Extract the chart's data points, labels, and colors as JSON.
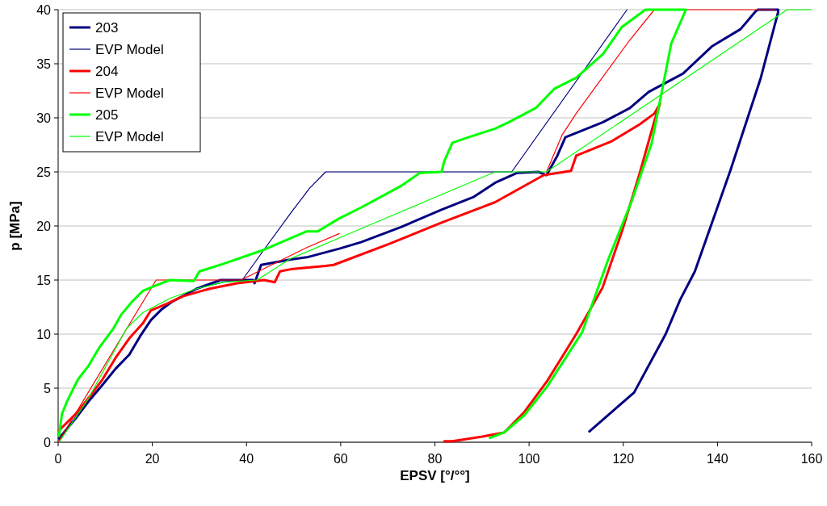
{
  "chart_data": {
    "type": "line",
    "xlabel": "EPSV [°/°°]",
    "ylabel": "p [MPa]",
    "xlim": [
      0,
      160
    ],
    "ylim": [
      0,
      40
    ],
    "xticks": [
      0,
      20,
      40,
      60,
      80,
      100,
      120,
      140,
      160
    ],
    "yticks": [
      0,
      5,
      10,
      15,
      20,
      25,
      30,
      35,
      40
    ],
    "grid": "y",
    "legend": "top left",
    "marker": "none",
    "line_style": "solid",
    "series": [
      {
        "name": "203",
        "color": "#000080",
        "x": [
          0.2,
          3.7,
          6.5,
          9.4,
          12.2,
          15.1,
          17.4,
          19.7,
          22,
          24.2,
          29.4,
          34.5,
          41.4,
          41.7,
          43.1,
          49.4,
          52.8,
          59.7,
          64.3,
          72.8,
          81.4,
          88.3,
          92.8,
          97.4,
          102,
          103.7,
          106,
          107.7,
          115.7,
          121.4,
          125.4,
          132.7,
          138.8,
          144.9,
          148,
          148.6,
          152.9,
          152.9,
          149.2,
          142.8,
          135.2,
          132.1,
          129,
          122.3,
          112.8
        ],
        "values": [
          0.35,
          2.2,
          3.8,
          5.3,
          6.8,
          8.1,
          9.8,
          11.3,
          12.3,
          13,
          14.2,
          15,
          15,
          14.7,
          16.4,
          16.9,
          17.1,
          17.9,
          18.5,
          19.9,
          21.5,
          22.7,
          24,
          24.9,
          25,
          24.7,
          26.5,
          28.2,
          29.6,
          30.9,
          32.4,
          34.1,
          36.6,
          38.2,
          39.8,
          40,
          40,
          39.8,
          33.7,
          25.2,
          15.8,
          13.2,
          10,
          4.6,
          1
        ]
      },
      {
        "name": "EVP Model",
        "color": "#000080",
        "x": [
          0,
          6.5,
          14.5,
          18,
          23.7,
          29.4,
          35.1,
          39.1,
          43.7,
          49.4,
          53.4,
          56.8,
          96.3,
          120.8
        ],
        "values": [
          0,
          4.1,
          null,
          null,
          null,
          14.2,
          14.8,
          15,
          17.8,
          21.2,
          23.5,
          25,
          25,
          40
        ]
      },
      {
        "name": "204",
        "color": "#ff0000",
        "x": [
          0.2,
          3.7,
          6.5,
          9.4,
          12.2,
          15.1,
          18,
          19.7,
          23.1,
          26.5,
          32.2,
          38,
          43.7,
          46,
          47.1,
          49.4,
          56.8,
          58.5,
          70,
          81.4,
          92.8,
          103.1,
          108.9,
          110,
          117.4,
          123.5,
          126.6,
          127.8,
          126.6,
          123.5,
          119.8,
          115.6,
          110,
          103.9,
          99,
          94.7,
          89.8,
          83.7,
          82
        ],
        "values": [
          1.1,
          2.6,
          4.1,
          5.8,
          7.8,
          9.6,
          11,
          12.2,
          12.8,
          13.5,
          14.2,
          14.7,
          15,
          14.8,
          15.8,
          16,
          16.3,
          16.4,
          18.3,
          20.3,
          22.2,
          24.7,
          25.1,
          26.5,
          27.8,
          29.4,
          30.4,
          31.3,
          29.7,
          24.9,
          19.6,
          14.3,
          10,
          5.7,
          2.8,
          0.9,
          0.5,
          0.1,
          0.1
        ]
      },
      {
        "name": "EVP Model",
        "color": "#ff0000",
        "x": [
          0,
          20.8,
          38.8,
          52.8,
          59.7,
          92.8,
          103.7,
          107,
          110,
          121.4,
          126.6,
          152.3
        ],
        "values": [
          0,
          15,
          15,
          18,
          19.3,
          null,
          25,
          28.4,
          30.4,
          37.2,
          40,
          40
        ]
      },
      {
        "name": "205",
        "color": "#00ff00",
        "x": [
          0.2,
          0.8,
          1.9,
          4.2,
          6.5,
          8.8,
          11.7,
          13.4,
          15.7,
          18,
          20.8,
          23.7,
          28.8,
          30,
          35.1,
          43.7,
          52.8,
          55.1,
          59.7,
          64.3,
          72.8,
          76.8,
          81.4,
          82,
          83.7,
          87.1,
          92.8,
          95.7,
          101.4,
          105.4,
          110,
          115.7,
          119.7,
          124.7,
          133.3,
          130.2,
          128.4,
          126,
          121.7,
          116.8,
          111.3,
          103.9,
          99,
          94.7,
          91.7
        ],
        "values": [
          0.6,
          2.6,
          3.8,
          5.8,
          7.1,
          8.8,
          10.5,
          11.8,
          13,
          14,
          14.5,
          15,
          14.9,
          15.8,
          16.5,
          17.8,
          19.5,
          19.5,
          20.7,
          21.7,
          23.7,
          24.9,
          25,
          26,
          27.7,
          28.2,
          29,
          29.6,
          30.9,
          32.7,
          33.7,
          35.9,
          38.4,
          40,
          40,
          36.9,
          32.9,
          27.6,
          22.2,
          16.9,
          10.2,
          5.2,
          2.5,
          0.9,
          0.4
        ]
      },
      {
        "name": "EVP Model",
        "color": "#00ff00",
        "x": [
          0.2,
          6.5,
          14.5,
          18,
          23.7,
          29.4,
          35.1,
          42.2,
          49.4,
          52.8,
          59.7,
          92.8,
          103.7,
          154.8,
          160
        ],
        "values": [
          0,
          4.1,
          10.5,
          12,
          13.3,
          14.2,
          14.8,
          15,
          17,
          17.6,
          18.9,
          25,
          25,
          40,
          40
        ]
      }
    ]
  }
}
